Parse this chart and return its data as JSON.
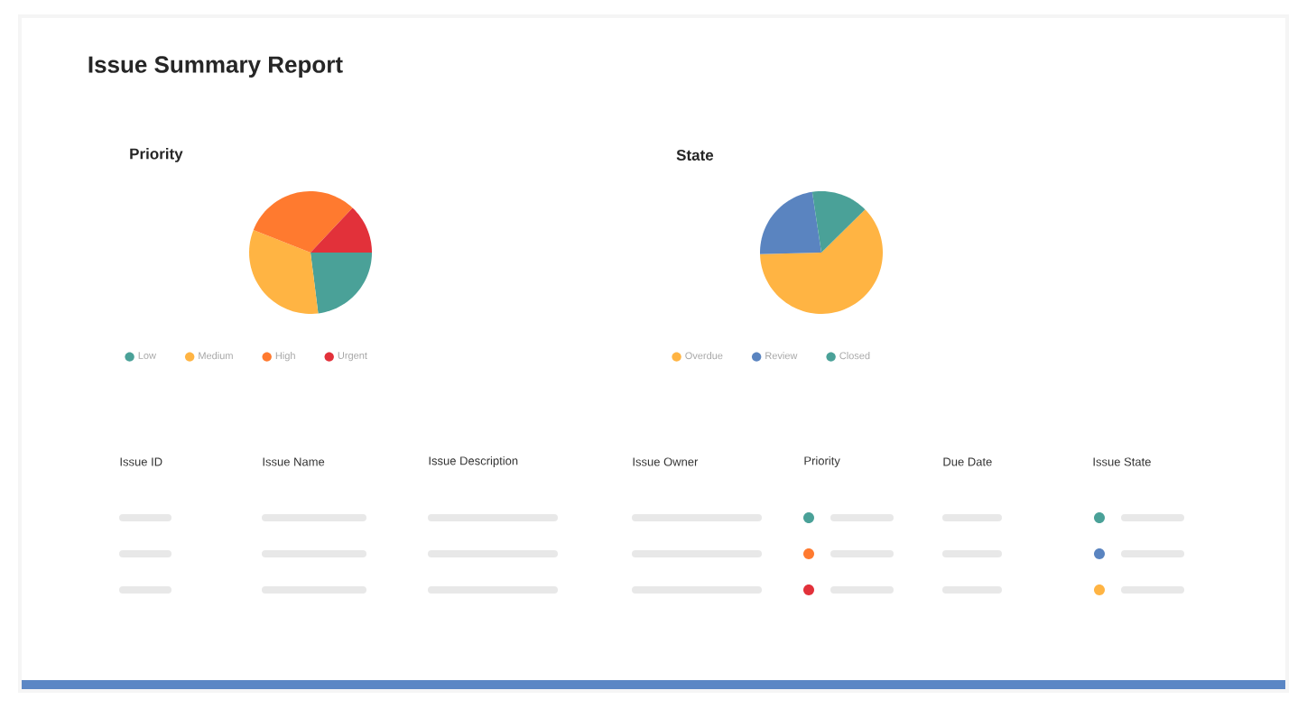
{
  "chart_data": [
    {
      "type": "other",
      "title": "Issue Summary Report",
      "annotations": [
        "Issue ID",
        "Issue Name",
        "Issue Description",
        "Issue Owner",
        "Priority",
        "Due Date",
        "Issue State"
      ]
    },
    {
      "type": "pie",
      "title": "Priority",
      "categories": [
        "Low",
        "Medium",
        "High",
        "Urgent"
      ],
      "values": [
        23,
        33,
        31,
        13
      ],
      "colors": [
        "#4aa198",
        "#ffb443",
        "#ff7a2f",
        "#e2313a"
      ],
      "legend": "bottom"
    },
    {
      "type": "pie",
      "title": "State",
      "categories": [
        "Overdue",
        "Review",
        "Closed"
      ],
      "values": [
        62,
        23,
        15
      ],
      "colors": [
        "#ffb443",
        "#5a84c0",
        "#4aa198"
      ],
      "legend": "bottom"
    }
  ]
}
